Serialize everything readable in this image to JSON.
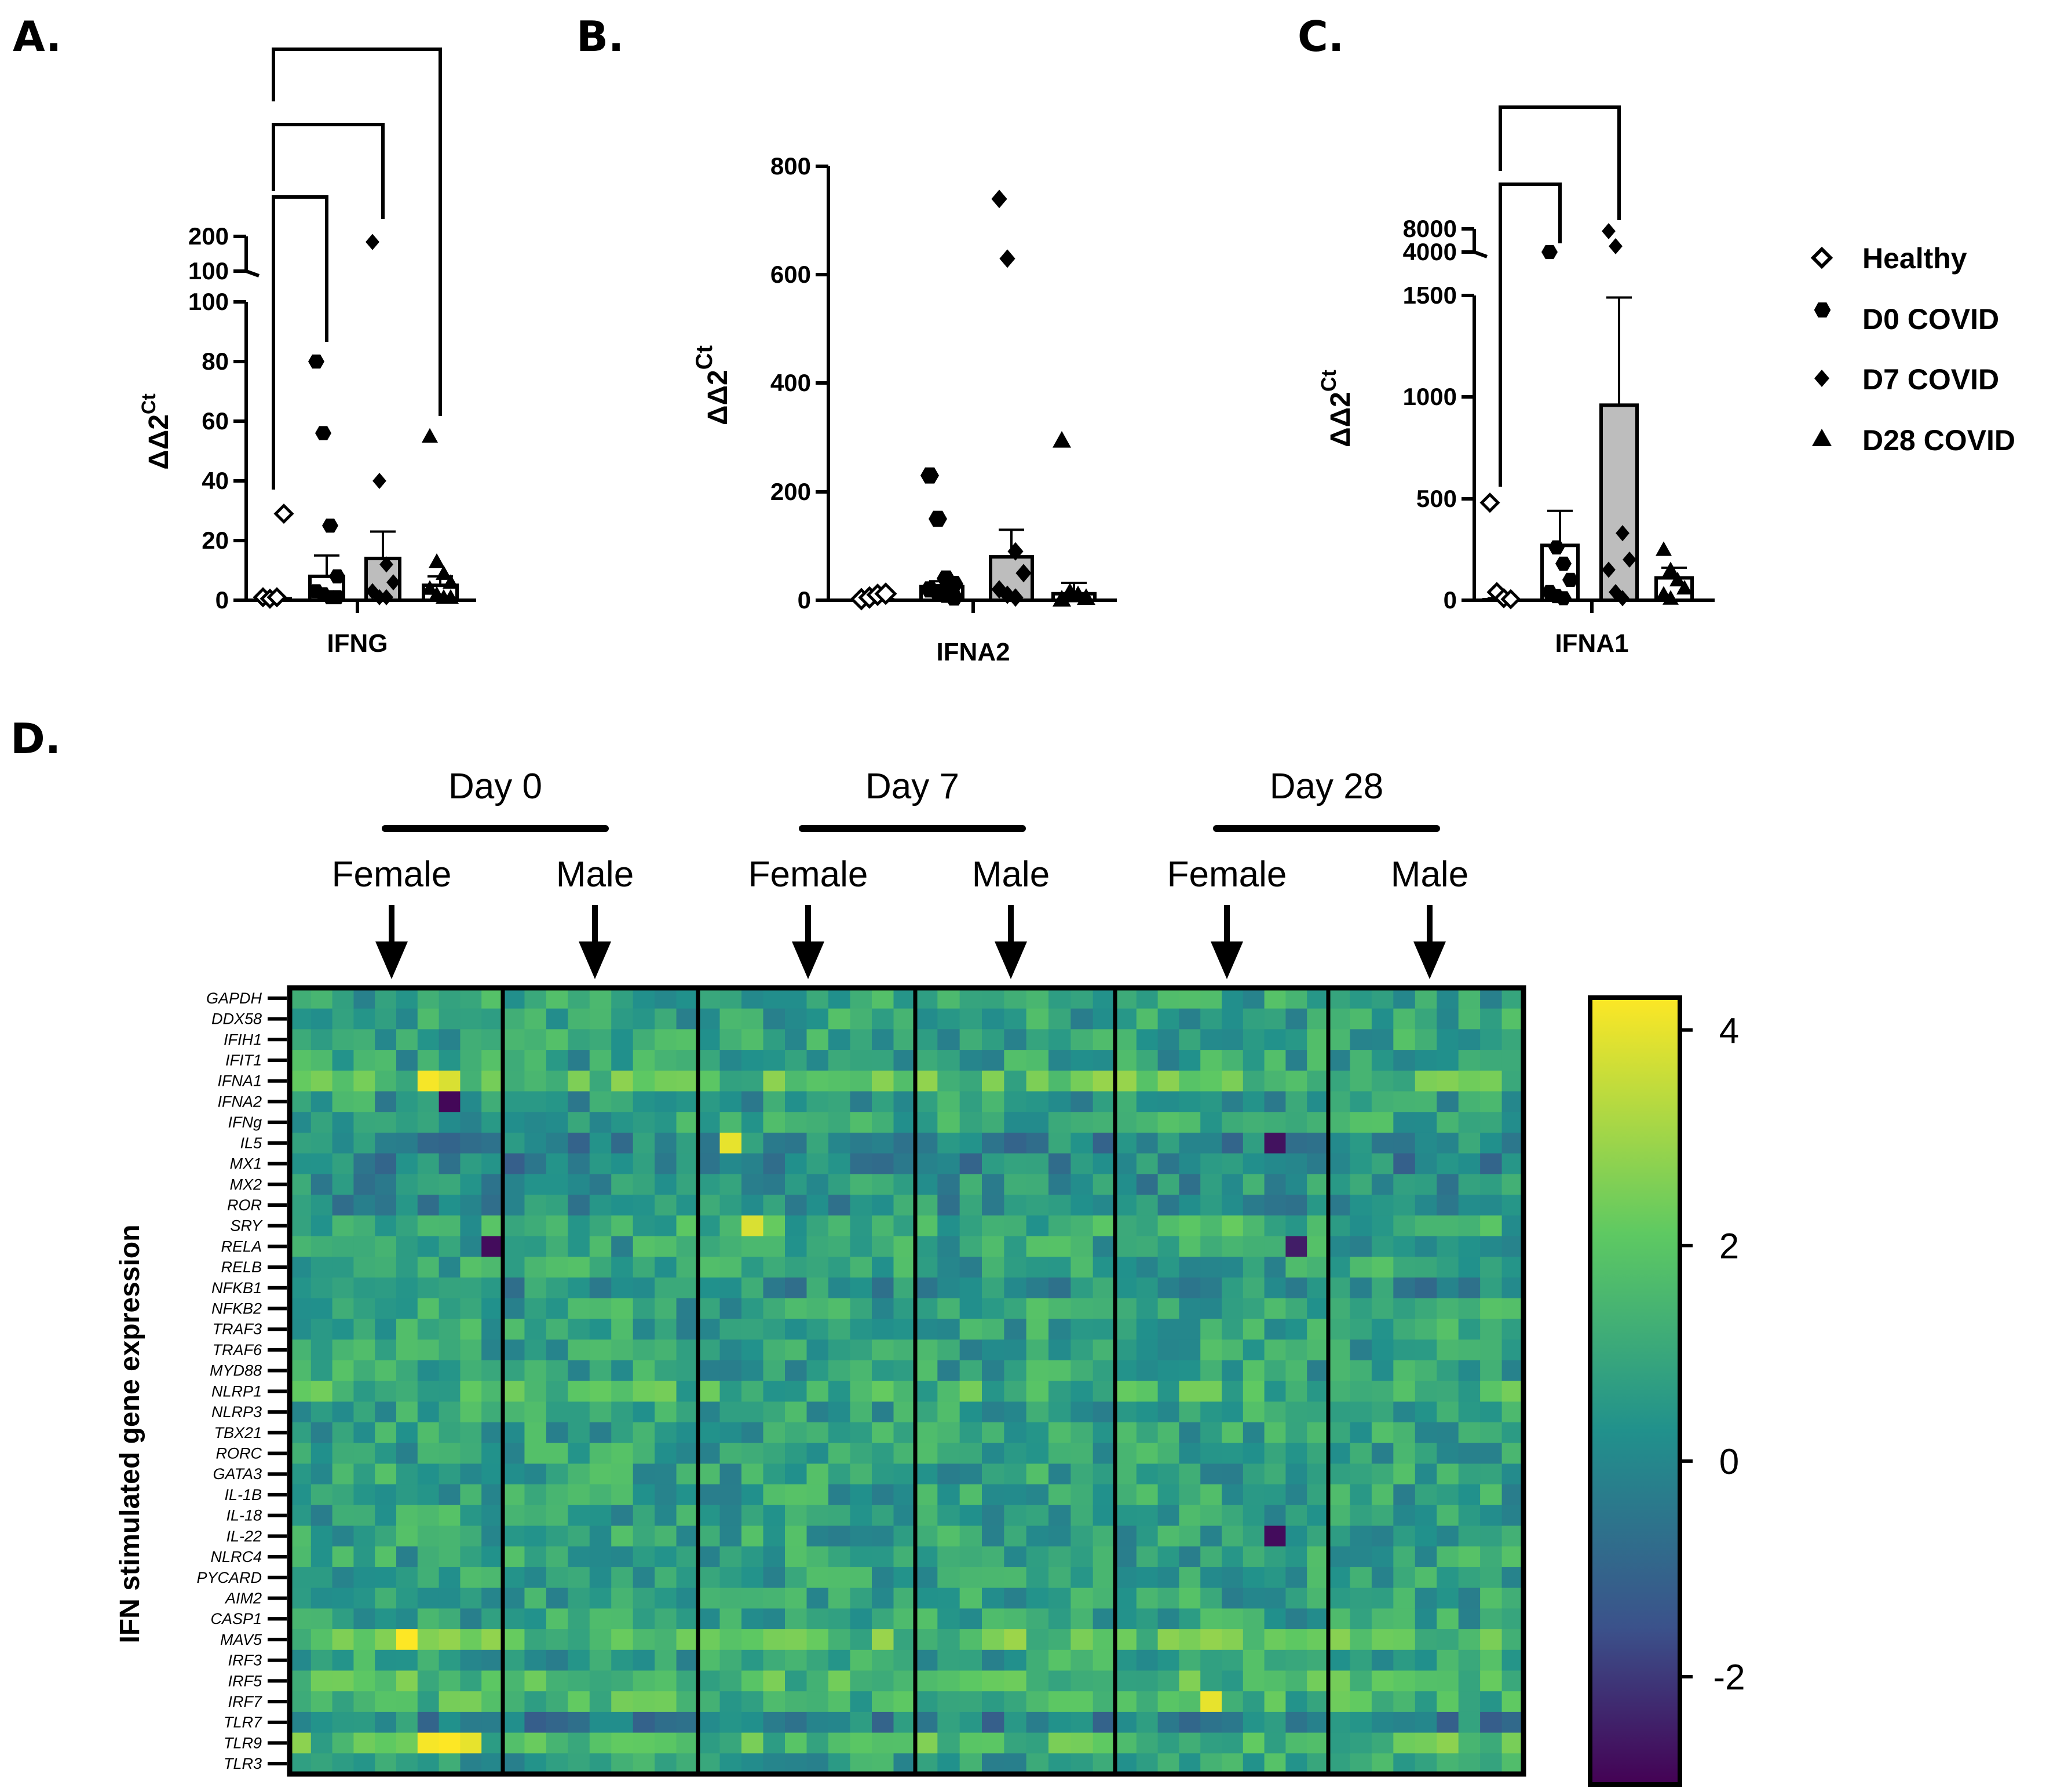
{
  "panel_letters": [
    "A.",
    "B.",
    "C.",
    "D."
  ],
  "y_label_bar": "ΔΔ2Ct",
  "legend": [
    {
      "name": "Healthy",
      "marker": "diamond-open"
    },
    {
      "name": "D0 COVID",
      "marker": "hexagon"
    },
    {
      "name": "D7 COVID",
      "marker": "diamond"
    },
    {
      "name": "D28 COVID",
      "marker": "triangle"
    }
  ],
  "chart_data": [
    {
      "type": "bar",
      "title": "IFNG",
      "xlabel": "IFNG",
      "ylabel": "ΔΔ2Ct",
      "categories": [
        "Healthy",
        "D0 COVID",
        "D7 COVID",
        "D28 COVID"
      ],
      "values": [
        0.5,
        8,
        14,
        5
      ],
      "errors": [
        0.5,
        7,
        9,
        3
      ],
      "bar_fill": [
        "#ffffff",
        "#ffffff",
        "#bdbdbd",
        "#ffffff"
      ],
      "points": [
        [
          1,
          0.5,
          1,
          29
        ],
        [
          80,
          56,
          25,
          8,
          3,
          2,
          1,
          1
        ],
        [
          184,
          40,
          12,
          6,
          3,
          1,
          1
        ],
        [
          55,
          13,
          9,
          6,
          4,
          2,
          1,
          1
        ]
      ],
      "y_ticks": [
        "0",
        "20",
        "40",
        "60",
        "80",
        "100",
        "100",
        "200"
      ],
      "ylim_lower": [
        0,
        100
      ],
      "ylim_upper": [
        100,
        200
      ],
      "brackets": [
        [
          0,
          1
        ],
        [
          0,
          2
        ],
        [
          0,
          3
        ]
      ]
    },
    {
      "type": "bar",
      "title": "IFNA2",
      "xlabel": "IFNA2",
      "ylabel": "ΔΔ2Ct",
      "categories": [
        "Healthy",
        "D0 COVID",
        "D7 COVID",
        "D28 COVID"
      ],
      "values": [
        2,
        25,
        80,
        12
      ],
      "errors": [
        1,
        10,
        50,
        20
      ],
      "bar_fill": [
        "#ffffff",
        "#ffffff",
        "#bdbdbd",
        "#ffffff"
      ],
      "points": [
        [
          2,
          5,
          10,
          12
        ],
        [
          230,
          150,
          40,
          30,
          20,
          15,
          10,
          5
        ],
        [
          740,
          630,
          90,
          50,
          20,
          10,
          5
        ],
        [
          295,
          15,
          10,
          5,
          2
        ]
      ],
      "y_ticks": [
        "0",
        "200",
        "400",
        "600",
        "800"
      ],
      "ylim": [
        0,
        800
      ]
    },
    {
      "type": "bar",
      "title": "IFNA1",
      "xlabel": "IFNA1",
      "ylabel": "ΔΔ2Ct",
      "categories": [
        "Healthy",
        "D0 COVID",
        "D7 COVID",
        "D28 COVID"
      ],
      "values": [
        5,
        270,
        960,
        110
      ],
      "errors": [
        5,
        170,
        530,
        50
      ],
      "bar_fill": [
        "#ffffff",
        "#ffffff",
        "#bdbdbd",
        "#ffffff"
      ],
      "points": [
        [
          480,
          40,
          10,
          5
        ],
        [
          4000,
          260,
          180,
          100,
          40,
          20,
          10
        ],
        [
          7600,
          5000,
          330,
          200,
          150,
          40,
          10
        ],
        [
          250,
          150,
          100,
          60,
          30,
          10
        ]
      ],
      "y_ticks": [
        "0",
        "500",
        "1000",
        "1500",
        "4000",
        "8000"
      ],
      "ylim_lower": [
        0,
        1500
      ],
      "ylim_upper": [
        4000,
        8000
      ],
      "brackets": [
        [
          0,
          1
        ],
        [
          0,
          2
        ]
      ]
    },
    {
      "type": "heatmap",
      "ylabel": "IFN stimulated gene expression",
      "day_headers": [
        "Day 0",
        "Day 7",
        "Day 28"
      ],
      "sex_headers": [
        "Female",
        "Male",
        "Female",
        "Male",
        "Female",
        "Male"
      ],
      "rows": [
        "GAPDH",
        "DDX58",
        "IFIH1",
        "IFIT1",
        "IFNA1",
        "IFNA2",
        "IFNg",
        "IL5",
        "MX1",
        "MX2",
        "ROR",
        "SRY",
        "RELA",
        "RELB",
        "NFKB1",
        "NFKB2",
        "TRAF3",
        "TRAF6",
        "MYD88",
        "NLRP1",
        "NLRP3",
        "TBX21",
        "RORC",
        "GATA3",
        "IL-1B",
        "IL-18",
        "IL-22",
        "NLRC4",
        "PYCARD",
        "AIM2",
        "CASP1",
        "MAV5",
        "IRF3",
        "IRF5",
        "IRF7",
        "TLR7",
        "TLR9",
        "TLR3"
      ],
      "group_columns": [
        10,
        9,
        10,
        9,
        10,
        9
      ],
      "colorbar_ticks": [
        "4",
        "2",
        "0",
        "-2"
      ],
      "colorbar_range": [
        -3,
        4.3
      ],
      "colorscale": [
        "#440154",
        "#3b528b",
        "#21918c",
        "#5ec962",
        "#fde725"
      ]
    }
  ]
}
